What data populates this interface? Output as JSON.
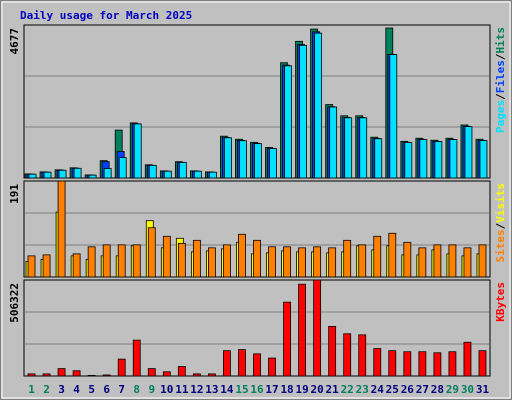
{
  "chart_data": [
    {
      "type": "bar",
      "title": "Daily usage for March 2025",
      "ylim": [
        0,
        4677
      ],
      "yticks": [
        4677
      ],
      "legend_separator": "/",
      "series": [
        {
          "name": "Hits",
          "color": "#00805c",
          "values": [
            125,
            187,
            250,
            312,
            94,
            530,
            1465,
            1684,
            405,
            218,
            499,
            218,
            187,
            1278,
            1185,
            1091,
            935,
            3524,
            4178,
            4552,
            2245,
            1902,
            1902,
            1247,
            4584,
            1122,
            1216,
            1154,
            1216,
            1621,
            1185
          ]
        },
        {
          "name": "Files",
          "color": "#0040ff",
          "values": [
            120,
            180,
            240,
            300,
            90,
            500,
            810,
            1660,
            390,
            210,
            480,
            210,
            180,
            1240,
            1150,
            1060,
            905,
            3450,
            4080,
            4470,
            2180,
            1850,
            1850,
            1210,
            3780,
            1090,
            1180,
            1120,
            1180,
            1580,
            1150
          ]
        },
        {
          "name": "Pages",
          "color": "#00e0ff",
          "values": [
            118,
            178,
            236,
            296,
            88,
            290,
            624,
            1653,
            385,
            208,
            475,
            208,
            178,
            1230,
            1140,
            1050,
            900,
            3430,
            4053,
            4428,
            2170,
            1840,
            1840,
            1200,
            3772,
            1085,
            1175,
            1115,
            1175,
            1570,
            1145
          ]
        }
      ]
    },
    {
      "type": "bar",
      "ylim": [
        0,
        191
      ],
      "yticks": [
        191
      ],
      "legend_separator": "/",
      "series": [
        {
          "name": "Visits",
          "color": "#ffff00",
          "values": [
            31,
            35,
            129,
            42,
            35,
            42,
            42,
            62,
            112,
            58,
            77,
            50,
            52,
            56,
            69,
            46,
            48,
            52,
            50,
            50,
            48,
            50,
            62,
            54,
            62,
            44,
            44,
            54,
            46,
            42,
            46
          ]
        },
        {
          "name": "Sites",
          "color": "#ff8000",
          "values": [
            42,
            44,
            191,
            46,
            60,
            64,
            64,
            64,
            98,
            81,
            67,
            73,
            58,
            64,
            85,
            73,
            60,
            60,
            58,
            60,
            58,
            73,
            64,
            81,
            87,
            69,
            58,
            64,
            64,
            58,
            64
          ]
        }
      ]
    },
    {
      "type": "bar",
      "ylim": [
        0,
        506322
      ],
      "yticks": [
        506322
      ],
      "categories": [
        "1",
        "2",
        "3",
        "4",
        "5",
        "6",
        "7",
        "8",
        "9",
        "10",
        "11",
        "12",
        "13",
        "14",
        "15",
        "16",
        "17",
        "18",
        "19",
        "20",
        "21",
        "22",
        "23",
        "24",
        "25",
        "26",
        "27",
        "28",
        "29",
        "30",
        "31"
      ],
      "category_colors": [
        "#00805c",
        "#00805c",
        "#000080",
        "#000080",
        "#000080",
        "#000080",
        "#000080",
        "#00805c",
        "#00805c",
        "#000080",
        "#000080",
        "#000080",
        "#000080",
        "#000080",
        "#00805c",
        "#00805c",
        "#000080",
        "#000080",
        "#000080",
        "#000080",
        "#000080",
        "#00805c",
        "#00805c",
        "#000080",
        "#000080",
        "#000080",
        "#000080",
        "#000080",
        "#00805c",
        "#00805c",
        "#000080"
      ],
      "series": [
        {
          "name": "KBytes",
          "color": "#ff0000",
          "values": [
            11128,
            11128,
            38948,
            27820,
            3000,
            5564,
            89024,
            189176,
            38948,
            22256,
            50076,
            11128,
            11128,
            133536,
            139100,
            116844,
            94588,
            389480,
            484068,
            506322,
            261508,
            222560,
            216996,
            144664,
            133536,
            127972,
            127972,
            122408,
            127972,
            178048,
            133536
          ]
        }
      ]
    }
  ]
}
